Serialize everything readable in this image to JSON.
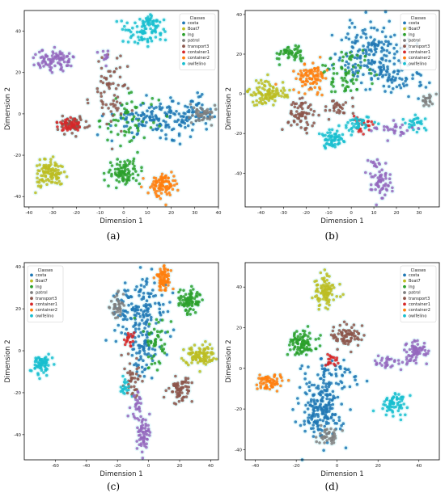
{
  "figure": {
    "panels": [
      {
        "caption": "(a)"
      },
      {
        "caption": "(b)"
      },
      {
        "caption": "(c)"
      },
      {
        "caption": "(d)"
      }
    ]
  },
  "chart_data": [
    {
      "type": "scatter",
      "xlabel": "Dimension 1",
      "ylabel": "Dimension 2",
      "legend_title": "Classes",
      "legend_position": "top-right",
      "xlim": [
        -42,
        40
      ],
      "ylim": [
        -45,
        50
      ],
      "xticks": [
        -40,
        -30,
        -20,
        -10,
        0,
        10,
        20,
        30,
        40
      ],
      "yticks": [
        -40,
        -20,
        0,
        20,
        40
      ],
      "series": [
        {
          "name": "costa",
          "color": "#1f77b4",
          "clusters": [
            {
              "cx": 15,
              "cy": -2,
              "sx": 10,
              "sy": 4,
              "n": 160
            },
            {
              "cx": 30,
              "cy": 0,
              "sx": 3,
              "sy": 4,
              "n": 40
            }
          ]
        },
        {
          "name": "Boat7",
          "color": "#bcbd22",
          "clusters": [
            {
              "cx": -31,
              "cy": -29,
              "sx": 3.2,
              "sy": 3.2,
              "n": 110
            }
          ]
        },
        {
          "name": "lng",
          "color": "#2ca02c",
          "clusters": [
            {
              "cx": 0,
              "cy": -28,
              "sx": 3.5,
              "sy": 3,
              "n": 90
            },
            {
              "cx": 3,
              "cy": -3,
              "sx": 6,
              "sy": 6,
              "n": 60
            }
          ]
        },
        {
          "name": "patrol",
          "color": "#7f7f7f",
          "clusters": [
            {
              "cx": 33,
              "cy": 0,
              "sx": 2.5,
              "sy": 2.5,
              "n": 45
            }
          ]
        },
        {
          "name": "transport3",
          "color": "#8c564b",
          "clusters": [
            {
              "cx": -22,
              "cy": -5,
              "sx": 3.5,
              "sy": 2,
              "n": 60
            },
            {
              "cx": -5,
              "cy": 10,
              "sx": 4,
              "sy": 9,
              "n": 70
            }
          ]
        },
        {
          "name": "container1",
          "color": "#d62728",
          "clusters": [
            {
              "cx": -23,
              "cy": -5,
              "sx": 2.5,
              "sy": 2,
              "n": 40
            }
          ]
        },
        {
          "name": "container2",
          "color": "#ff7f0e",
          "clusters": [
            {
              "cx": 17,
              "cy": -34,
              "sx": 3,
              "sy": 3,
              "n": 100
            }
          ]
        },
        {
          "name": "owlfelino",
          "color": "#17becf",
          "clusters": [
            {
              "cx": 9,
              "cy": 40,
              "sx": 4,
              "sy": 3,
              "n": 80
            },
            {
              "cx": 12,
              "cy": 45,
              "sx": 2,
              "sy": 2,
              "n": 20
            }
          ]
        },
        {
          "name": "",
          "color": "#9467bd",
          "clusters": [
            {
              "cx": -29,
              "cy": 26,
              "sx": 4,
              "sy": 2.5,
              "n": 90
            },
            {
              "cx": -7,
              "cy": 28,
              "sx": 1.5,
              "sy": 2,
              "n": 12
            }
          ]
        }
      ]
    },
    {
      "type": "scatter",
      "xlabel": "Dimension 1",
      "ylabel": "Dimension 2",
      "legend_title": "Classes",
      "legend_position": "top-right",
      "xlim": [
        -47,
        39
      ],
      "ylim": [
        -57,
        42
      ],
      "xticks": [
        -40,
        -30,
        -20,
        -10,
        0,
        10,
        20,
        30
      ],
      "yticks": [
        -40,
        -20,
        0,
        20,
        40
      ],
      "series": [
        {
          "name": "costa",
          "color": "#1f77b4",
          "clusters": [
            {
              "cx": 10,
              "cy": 20,
              "sx": 8,
              "sy": 8,
              "n": 180
            },
            {
              "cx": 20,
              "cy": 8,
              "sx": 6,
              "sy": 5,
              "n": 60
            }
          ]
        },
        {
          "name": "Boat7",
          "color": "#bcbd22",
          "clusters": [
            {
              "cx": -37,
              "cy": 0,
              "sx": 4,
              "sy": 3,
              "n": 110
            }
          ]
        },
        {
          "name": "lng",
          "color": "#2ca02c",
          "clusters": [
            {
              "cx": -27,
              "cy": 20,
              "sx": 3,
              "sy": 2,
              "n": 50
            },
            {
              "cx": -3,
              "cy": 10,
              "sx": 6,
              "sy": 6,
              "n": 70
            }
          ]
        },
        {
          "name": "patrol",
          "color": "#7f7f7f",
          "clusters": [
            {
              "cx": 34,
              "cy": -3,
              "sx": 1.5,
              "sy": 1.5,
              "n": 20
            }
          ]
        },
        {
          "name": "transport3",
          "color": "#8c564b",
          "clusters": [
            {
              "cx": -22,
              "cy": -10,
              "sx": 3,
              "sy": 4,
              "n": 70
            },
            {
              "cx": -5,
              "cy": -7,
              "sx": 3,
              "sy": 2,
              "n": 30
            }
          ]
        },
        {
          "name": "container1",
          "color": "#d62728",
          "clusters": [
            {
              "cx": 5,
              "cy": -15,
              "sx": 2,
              "sy": 2,
              "n": 25
            }
          ]
        },
        {
          "name": "container2",
          "color": "#ff7f0e",
          "clusters": [
            {
              "cx": -18,
              "cy": 8,
              "sx": 3.5,
              "sy": 3.5,
              "n": 90
            }
          ]
        },
        {
          "name": "owlfelino",
          "color": "#17becf",
          "clusters": [
            {
              "cx": -8,
              "cy": -23,
              "sx": 3,
              "sy": 2,
              "n": 60
            },
            {
              "cx": 2,
              "cy": -15,
              "sx": 4,
              "sy": 2,
              "n": 40
            },
            {
              "cx": 28,
              "cy": -15,
              "sx": 2,
              "sy": 2,
              "n": 30
            }
          ]
        },
        {
          "name": "",
          "color": "#9467bd",
          "clusters": [
            {
              "cx": 12,
              "cy": -44,
              "sx": 2.5,
              "sy": 5,
              "n": 70
            },
            {
              "cx": 20,
              "cy": -18,
              "sx": 5,
              "sy": 2,
              "n": 30
            }
          ]
        }
      ]
    },
    {
      "type": "scatter",
      "xlabel": "Dimension 1",
      "ylabel": "Dimension 2",
      "legend_title": "Classes",
      "legend_position": "top-left",
      "xlim": [
        -80,
        45
      ],
      "ylim": [
        -52,
        42
      ],
      "xticks": [
        -60,
        -40,
        -20,
        0,
        20,
        40
      ],
      "yticks": [
        -40,
        -20,
        0,
        20,
        40
      ],
      "series": [
        {
          "name": "costa",
          "color": "#1f77b4",
          "clusters": [
            {
              "cx": -7,
              "cy": 18,
              "sx": 8,
              "sy": 8,
              "n": 170
            },
            {
              "cx": -3,
              "cy": 0,
              "sx": 5,
              "sy": 6,
              "n": 60
            }
          ]
        },
        {
          "name": "Boat7",
          "color": "#bcbd22",
          "clusters": [
            {
              "cx": 33,
              "cy": -3,
              "sx": 5,
              "sy": 3,
              "n": 100
            }
          ]
        },
        {
          "name": "lng",
          "color": "#2ca02c",
          "clusters": [
            {
              "cx": 26,
              "cy": 24,
              "sx": 4,
              "sy": 3,
              "n": 90
            },
            {
              "cx": 4,
              "cy": 5,
              "sx": 4,
              "sy": 6,
              "n": 50
            }
          ]
        },
        {
          "name": "patrol",
          "color": "#7f7f7f",
          "clusters": [
            {
              "cx": -20,
              "cy": 22,
              "sx": 2.5,
              "sy": 3,
              "n": 40
            }
          ]
        },
        {
          "name": "transport3",
          "color": "#8c564b",
          "clusters": [
            {
              "cx": 20,
              "cy": -18,
              "sx": 4,
              "sy": 3,
              "n": 70
            },
            {
              "cx": -10,
              "cy": -12,
              "sx": 3,
              "sy": 5,
              "n": 40
            }
          ]
        },
        {
          "name": "container1",
          "color": "#d62728",
          "clusters": [
            {
              "cx": -13,
              "cy": 5,
              "sx": 2,
              "sy": 2,
              "n": 20
            }
          ]
        },
        {
          "name": "container2",
          "color": "#ff7f0e",
          "clusters": [
            {
              "cx": 10,
              "cy": 34,
              "sx": 2.5,
              "sy": 3.5,
              "n": 80
            }
          ]
        },
        {
          "name": "owlfelino",
          "color": "#17becf",
          "clusters": [
            {
              "cx": -69,
              "cy": -6,
              "sx": 3,
              "sy": 2.5,
              "n": 70
            },
            {
              "cx": -15,
              "cy": -18,
              "sx": 2,
              "sy": 2,
              "n": 20
            }
          ]
        },
        {
          "name": "",
          "color": "#9467bd",
          "clusters": [
            {
              "cx": -3,
              "cy": -40,
              "sx": 2.5,
              "sy": 4,
              "n": 60
            },
            {
              "cx": -8,
              "cy": -28,
              "sx": 2,
              "sy": 5,
              "n": 30
            }
          ]
        }
      ]
    },
    {
      "type": "scatter",
      "xlabel": "Dimension 1",
      "ylabel": "Dimension 2",
      "legend_title": "Classes",
      "legend_position": "top-right",
      "xlim": [
        -45,
        50
      ],
      "ylim": [
        -45,
        52
      ],
      "xticks": [
        -40,
        -20,
        0,
        20,
        40
      ],
      "yticks": [
        -40,
        -20,
        0,
        20,
        40
      ],
      "series": [
        {
          "name": "costa",
          "color": "#1f77b4",
          "clusters": [
            {
              "cx": -8,
              "cy": -20,
              "sx": 5,
              "sy": 8,
              "n": 200
            },
            {
              "cx": 0,
              "cy": -2,
              "sx": 6,
              "sy": 4,
              "n": 50
            }
          ]
        },
        {
          "name": "Boat7",
          "color": "#bcbd22",
          "clusters": [
            {
              "cx": -6,
              "cy": 38,
              "sx": 2.5,
              "sy": 4,
              "n": 100
            }
          ]
        },
        {
          "name": "lng",
          "color": "#2ca02c",
          "clusters": [
            {
              "cx": -17,
              "cy": 12,
              "sx": 3.5,
              "sy": 3,
              "n": 100
            }
          ]
        },
        {
          "name": "patrol",
          "color": "#7f7f7f",
          "clusters": [
            {
              "cx": -5,
              "cy": -33,
              "sx": 2.5,
              "sy": 2.5,
              "n": 40
            }
          ]
        },
        {
          "name": "transport3",
          "color": "#8c564b",
          "clusters": [
            {
              "cx": 5,
              "cy": 16,
              "sx": 4,
              "sy": 2.5,
              "n": 80
            }
          ]
        },
        {
          "name": "container1",
          "color": "#d62728",
          "clusters": [
            {
              "cx": -3,
              "cy": 4,
              "sx": 2,
              "sy": 2,
              "n": 20
            }
          ]
        },
        {
          "name": "container2",
          "color": "#ff7f0e",
          "clusters": [
            {
              "cx": -33,
              "cy": -7,
              "sx": 3,
              "sy": 2,
              "n": 70
            }
          ]
        },
        {
          "name": "owlfelino",
          "color": "#17becf",
          "clusters": [
            {
              "cx": 29,
              "cy": -18,
              "sx": 3,
              "sy": 3,
              "n": 70
            }
          ]
        },
        {
          "name": "",
          "color": "#9467bd",
          "clusters": [
            {
              "cx": 38,
              "cy": 8,
              "sx": 3,
              "sy": 3,
              "n": 70
            },
            {
              "cx": 25,
              "cy": 3,
              "sx": 4,
              "sy": 2,
              "n": 30
            }
          ]
        }
      ]
    }
  ]
}
